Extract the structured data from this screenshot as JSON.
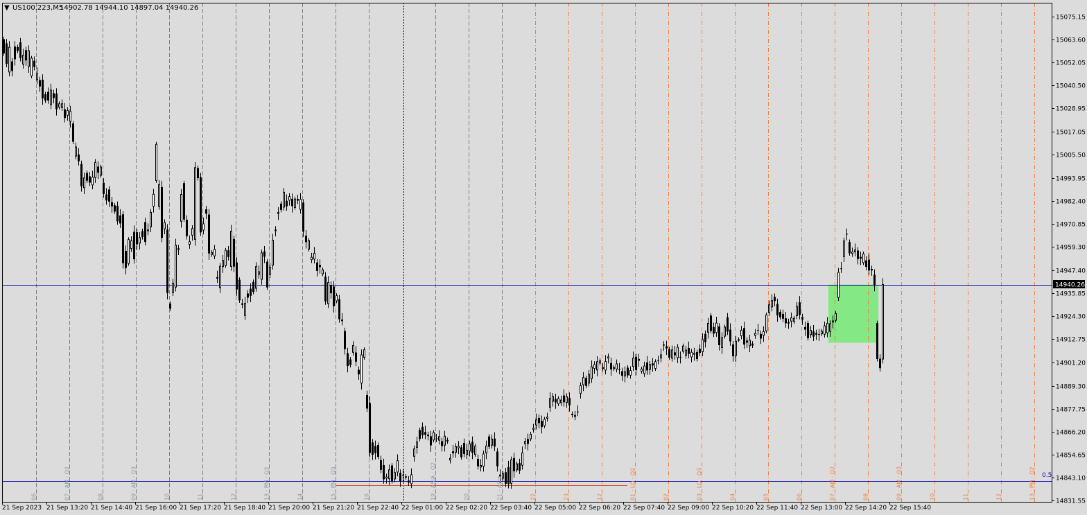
{
  "header": {
    "menu_arrow": "▼",
    "symbol": "US100.223,M5",
    "ohlc": "14902.78 14944.10 14897.04 14940.26"
  },
  "price_badge": "14940.26",
  "level_label": "0.5",
  "colors": {
    "background": "#dcdcdc",
    "candle": "#000000",
    "h_line": "#1515b0",
    "session_line_gray": "#808080",
    "session_line_orange": "#f08040",
    "label_gray": "#8c98a8",
    "label_orange": "#f08040",
    "zone_fill": "#84e884",
    "low_line": "#d85030"
  },
  "chart_data": {
    "type": "candlestick",
    "ylim": [
      14831,
      15082
    ],
    "y_ticks": [
      15075.15,
      15063.6,
      15052.05,
      15040.5,
      15028.95,
      15017.05,
      15005.5,
      14993.95,
      14982.4,
      14970.85,
      14959.3,
      14947.4,
      14935.85,
      14924.3,
      14912.75,
      14901.2,
      14889.3,
      14877.75,
      14866.2,
      14854.65,
      14843.1,
      14831.55
    ],
    "x_labels": [
      "21 Sep 2023",
      "21 Sep 13:20",
      "21 Sep 14:40",
      "21 Sep 16:00",
      "21 Sep 17:20",
      "21 Sep 18:40",
      "21 Sep 20:00",
      "21 Sep 21:20",
      "21 Sep 22:40",
      "22 Sep 01:00",
      "22 Sep 02:20",
      "22 Sep 03:40",
      "22 Sep 05:00",
      "22 Sep 06:20",
      "22 Sep 07:40",
      "22 Sep 09:00",
      "22 Sep 10:20",
      "22 Sep 11:40",
      "22 Sep 13:00",
      "22 Sep 14:20",
      "22 Sep 15:40"
    ],
    "h_lines": [
      14940.26,
      14841.5
    ],
    "zone": {
      "index_from": 298,
      "index_to": 315,
      "price_low": 14911.0,
      "price_high": 14940.26
    },
    "low_segment": {
      "price": 14839.5,
      "index_from": 120,
      "index_to": 225
    },
    "session_lines_gray": [
      {
        "i": 12,
        "label": "06"
      },
      {
        "i": 24,
        "label": "07 · AM · Q2"
      },
      {
        "i": 36,
        "label": "08"
      },
      {
        "i": 48,
        "label": "09 · AM · Q3"
      },
      {
        "i": 60,
        "label": "10"
      },
      {
        "i": 72,
        "label": "11"
      },
      {
        "i": 84,
        "label": "12"
      },
      {
        "i": 96,
        "label": "13 · PM · Q2"
      },
      {
        "i": 108,
        "label": "14"
      },
      {
        "i": 120,
        "label": "15 · PM · Q3"
      },
      {
        "i": 132,
        "label": "16"
      },
      {
        "i": 156,
        "label": "19 · ASIA · Q2"
      },
      {
        "i": 168,
        "label": "20"
      },
      {
        "i": 180,
        "label": "21 · ASIA"
      }
    ],
    "session_lines_orange": [
      {
        "i": 192,
        "label": "22"
      },
      {
        "i": 204,
        "label": "23"
      },
      {
        "i": 216,
        "label": "12"
      },
      {
        "i": 228,
        "label": "01 · LO · Q2"
      },
      {
        "i": 240,
        "label": "02"
      },
      {
        "i": 252,
        "label": "03 · LO · Q3"
      },
      {
        "i": 264,
        "label": "04"
      },
      {
        "i": 276,
        "label": "05"
      },
      {
        "i": 288,
        "label": "06"
      },
      {
        "i": 300,
        "label": "07 · AM · Q2"
      },
      {
        "i": 312,
        "label": "08"
      },
      {
        "i": 324,
        "label": "09 · AM · Q3"
      },
      {
        "i": 336,
        "label": "10"
      },
      {
        "i": 348,
        "label": "11"
      },
      {
        "i": 360,
        "label": "12"
      },
      {
        "i": 372,
        "label": "13 · PM · Q2"
      }
    ],
    "dotted_line_index": 144,
    "candles": [
      [
        15063.7,
        15056.5
      ],
      [
        15061.6,
        15051.3
      ],
      [
        15047.2,
        15059.6
      ],
      [
        15052.5,
        15047.7
      ],
      [
        15060.0,
        15053.6
      ],
      [
        15059.7,
        15057.8
      ],
      [
        15062.1,
        15054.2
      ],
      [
        15051.1,
        15055.6
      ],
      [
        15058.2,
        15053.0
      ],
      [
        15050.0,
        15057.9
      ],
      [
        15045.2,
        15054.1
      ],
      [
        15052.8,
        15049.7
      ],
      [
        15043.4,
        15046.3
      ],
      [
        15043.1,
        15039.9
      ],
      [
        15043.3,
        15033.9
      ],
      [
        15036.0,
        15032.8
      ],
      [
        15037.2,
        15032.9
      ],
      [
        15030.8,
        15038.1
      ],
      [
        15036.5,
        15034.1
      ],
      [
        15036.3,
        15028.5
      ],
      [
        15029.5,
        15031.2
      ],
      [
        15029.3,
        15031.2
      ],
      [
        15028.4,
        15024.0
      ],
      [
        15025.4,
        15027.8
      ],
      [
        15022.4,
        15027.4
      ],
      [
        15021.3,
        15012.1
      ],
      [
        15004.9,
        15009.5
      ],
      [
        15005.7,
        15002.3
      ],
      [
        15000.9,
        14989.7
      ],
      [
        14989.0,
        14993.9
      ],
      [
        14996.4,
        14992.5
      ],
      [
        14994.7,
        14991.5
      ],
      [
        14990.4,
        14994.3
      ],
      [
        14994.1,
        15001.7
      ],
      [
        14999.6,
        14996.6
      ],
      [
        14995.2,
        14999.4
      ],
      [
        14991.5,
        14985.8
      ],
      [
        14985.6,
        14982.6
      ],
      [
        14988.1,
        14982.0
      ],
      [
        14981.7,
        14979.6
      ],
      [
        14980.1,
        14977.0
      ],
      [
        14979.9,
        14972.1
      ],
      [
        14975.0,
        14971.0
      ],
      [
        14975.6,
        14951.0
      ],
      [
        14957.2,
        14948.6
      ],
      [
        14950.9,
        14962.9
      ],
      [
        14958.4,
        14962.3
      ],
      [
        14966.8,
        14953.0
      ],
      [
        14966.6,
        14960.5
      ],
      [
        14961.1,
        14963.9
      ],
      [
        14967.2,
        14964.1
      ],
      [
        14971.7,
        14961.7
      ],
      [
        14967.3,
        14967.8
      ],
      [
        14969.3,
        14976.6
      ],
      [
        14979.7,
        14985.7
      ],
      [
        14992.6,
        15010.8
      ],
      [
        14979.6,
        14990.6
      ],
      [
        14989.3,
        14963.8
      ],
      [
        14968.3,
        14971.4
      ],
      [
        14967.9,
        14936.0
      ],
      [
        14930.7,
        14928.2
      ],
      [
        14936.2,
        14941.0
      ],
      [
        14939.0,
        14960.1
      ],
      [
        14958.5,
        14957.8
      ],
      [
        14972.1,
        14985.6
      ],
      [
        14991.3,
        14973.0
      ],
      [
        14972.9,
        14964.6
      ],
      [
        14960.5,
        14961.8
      ],
      [
        14965.1,
        14968.4
      ],
      [
        14963.0,
        14999.1
      ],
      [
        14998.9,
        14993.8
      ],
      [
        14994.3,
        14966.5
      ],
      [
        14967.7,
        14970.8
      ],
      [
        14978.1,
        14975.9
      ],
      [
        14975.5,
        14955.9
      ],
      [
        14955.4,
        14956.4
      ],
      [
        14954.7,
        14958.0
      ],
      [
        14944.0,
        14943.3
      ],
      [
        14938.7,
        14949.5
      ],
      [
        14949.3,
        14952.4
      ],
      [
        14949.9,
        14957.5
      ],
      [
        14957.5,
        14954.1
      ],
      [
        14949.4,
        14967.1
      ],
      [
        14963.2,
        14949.3
      ],
      [
        14951.4,
        14937.8
      ],
      [
        14942.7,
        14932.3
      ],
      [
        14930.8,
        14930.1
      ],
      [
        14924.7,
        14930.8
      ],
      [
        14935.8,
        14933.7
      ],
      [
        14938.2,
        14934.6
      ],
      [
        14941.6,
        14936.6
      ],
      [
        14938.4,
        14949.3
      ],
      [
        14945.4,
        14946.7
      ],
      [
        14942.9,
        14956.2
      ],
      [
        14957.0,
        14954.3
      ],
      [
        14951.8,
        14938.8
      ],
      [
        14945.3,
        14949.0
      ],
      [
        14950.0,
        14962.6
      ],
      [
        14967.9,
        14967.2
      ],
      [
        14976.0,
        14976.5
      ],
      [
        14981.0,
        14977.8
      ],
      [
        14979.2,
        14986.7
      ],
      [
        14982.4,
        14979.6
      ],
      [
        14982.7,
        14984.5
      ],
      [
        14983.4,
        14979.7
      ],
      [
        14979.0,
        14983.3
      ],
      [
        14983.3,
        14982.5
      ],
      [
        14978.1,
        14983.1
      ],
      [
        14981.5,
        14966.9
      ],
      [
        14964.9,
        14961.6
      ],
      [
        14958.1,
        14962.4
      ],
      [
        14952.8,
        14954.0
      ],
      [
        14953.1,
        14956.0
      ],
      [
        14951.4,
        14947.1
      ],
      [
        14950.2,
        14949.0
      ],
      [
        14945.7,
        14947.7
      ],
      [
        14944.3,
        14931.8
      ],
      [
        14930.7,
        14941.3
      ],
      [
        14940.1,
        14935.9
      ],
      [
        14939.3,
        14929.4
      ],
      [
        14932.1,
        14934.7
      ],
      [
        14932.9,
        14922.8
      ],
      [
        14922.7,
        14921.9
      ],
      [
        14916.9,
        14907.8
      ],
      [
        14905.8,
        14899.3
      ],
      [
        14902.6,
        14899.8
      ],
      [
        14906.2,
        14909.6
      ],
      [
        14906.1,
        14901.5
      ],
      [
        14897.4,
        14895.1
      ],
      [
        14890.7,
        14904.9
      ],
      [
        14903.7,
        14907.5
      ],
      [
        14884.7,
        14877.9
      ],
      [
        14880.7,
        14855.6
      ],
      [
        14860.9,
        14854.7
      ],
      [
        14859.1,
        14855.5
      ],
      [
        14859.6,
        14853.6
      ],
      [
        14852.0,
        14847.1
      ],
      [
        14849.5,
        14842.3
      ],
      [
        14842.9,
        14843.5
      ],
      [
        14842.6,
        14847.1
      ],
      [
        14849.3,
        14841.4
      ],
      [
        14842.5,
        14845.7
      ],
      [
        14846.0,
        14851.7
      ],
      [
        14845.6,
        14841.3
      ],
      [
        14844.5,
        14844.1
      ],
      [
        14843.8,
        14843.2
      ],
      [
        14841.7,
        14840.7
      ],
      [
        14840.1,
        14844.6
      ],
      [
        14853.9,
        14857.6
      ],
      [
        14858.4,
        14861.1
      ],
      [
        14867.1,
        14862.6
      ],
      [
        14868.7,
        14864.5
      ],
      [
        14866.1,
        14864.7
      ],
      [
        14864.6,
        14864.6
      ],
      [
        14864.0,
        14859.4
      ],
      [
        14862.1,
        14865.9
      ],
      [
        14862.9,
        14862.7
      ],
      [
        14862.0,
        14863.8
      ],
      [
        14861.5,
        14859.0
      ],
      [
        14859.5,
        14864.0
      ],
      [
        14862.1,
        14861.4
      ],
      [
        14852.0,
        14852.9
      ],
      [
        14856.4,
        14855.4
      ],
      [
        14855.9,
        14858.8
      ],
      [
        14858.2,
        14858.9
      ],
      [
        14858.4,
        14853.4
      ],
      [
        14860.6,
        14855.1
      ],
      [
        14854.8,
        14857.0
      ],
      [
        14856.5,
        14860.1
      ],
      [
        14861.2,
        14855.7
      ],
      [
        14854.8,
        14859.0
      ],
      [
        14852.6,
        14848.9
      ],
      [
        14848.5,
        14849.3
      ],
      [
        14848.9,
        14855.1
      ],
      [
        14855.7,
        14859.1
      ],
      [
        14863.9,
        14858.7
      ],
      [
        14859.5,
        14862.6
      ],
      [
        14862.8,
        14858.8
      ],
      [
        14856.3,
        14848.9
      ],
      [
        14844.7,
        14843.6
      ],
      [
        14842.9,
        14845.2
      ],
      [
        14845.9,
        14840.1
      ],
      [
        14848.4,
        14840.0
      ],
      [
        14840.3,
        14852.1
      ],
      [
        14853.0,
        14846.4
      ],
      [
        14847.1,
        14850.1
      ],
      [
        14850.5,
        14846.7
      ],
      [
        14849.4,
        14855.6
      ],
      [
        14860.2,
        14861.4
      ],
      [
        14862.6,
        14860.1
      ],
      [
        14862.7,
        14865.0
      ],
      [
        14867.5,
        14868.0
      ],
      [
        14869.6,
        14872.2
      ],
      [
        14873.2,
        14870.6
      ],
      [
        14871.7,
        14868.6
      ],
      [
        14869.3,
        14872.5
      ],
      [
        14873.0,
        14873.6
      ],
      [
        14878.5,
        14883.0
      ],
      [
        14881.6,
        14884.0
      ],
      [
        14882.7,
        14881.0
      ],
      [
        14880.3,
        14882.9
      ],
      [
        14880.9,
        14882.2
      ],
      [
        14884.5,
        14881.1
      ],
      [
        14881.0,
        14883.9
      ],
      [
        14883.3,
        14879.6
      ],
      [
        14875.3,
        14874.6
      ],
      [
        14873.8,
        14874.5
      ],
      [
        14876.4,
        14876.3
      ],
      [
        14885.6,
        14889.4
      ],
      [
        14889.9,
        14893.5
      ],
      [
        14893.3,
        14889.3
      ],
      [
        14890.7,
        14895.1
      ],
      [
        14893.0,
        14898.9
      ],
      [
        14898.1,
        14900.0
      ],
      [
        14897.3,
        14901.5
      ],
      [
        14900.8,
        14901.9
      ],
      [
        14898.0,
        14898.6
      ],
      [
        14897.3,
        14901.6
      ],
      [
        14903.3,
        14903.9
      ],
      [
        14900.8,
        14897.6
      ],
      [
        14898.0,
        14898.5
      ],
      [
        14897.8,
        14900.4
      ],
      [
        14897.7,
        14897.3
      ],
      [
        14896.7,
        14894.4
      ],
      [
        14894.3,
        14896.4
      ],
      [
        14898.5,
        14894.6
      ],
      [
        14894.7,
        14897.0
      ],
      [
        14899.1,
        14903.3
      ],
      [
        14903.9,
        14897.3
      ],
      [
        14902.1,
        14902.7
      ],
      [
        14896.7,
        14897.8
      ],
      [
        14895.5,
        14899.3
      ],
      [
        14901.1,
        14897.1
      ],
      [
        14897.6,
        14900.1
      ],
      [
        14900.6,
        14899.6
      ],
      [
        14898.1,
        14901.5
      ],
      [
        14902.3,
        14901.9
      ],
      [
        14903.4,
        14904.9
      ],
      [
        14910.1,
        14909.6
      ],
      [
        14909.3,
        14908.1
      ],
      [
        14907.7,
        14903.6
      ],
      [
        14903.2,
        14907.4
      ],
      [
        14906.2,
        14904.7
      ],
      [
        14903.5,
        14908.7
      ],
      [
        14903.9,
        14903.8
      ],
      [
        14906.7,
        14909.4
      ],
      [
        14904.7,
        14907.3
      ],
      [
        14908.4,
        14905.4
      ],
      [
        14903.9,
        14906.2
      ],
      [
        14905.2,
        14905.8
      ],
      [
        14906.3,
        14902.8
      ],
      [
        14908.0,
        14905.9
      ],
      [
        14906.5,
        14912.6
      ],
      [
        14915.5,
        14911.3
      ],
      [
        14916.3,
        14920.8
      ],
      [
        14924.7,
        14916.9
      ],
      [
        14918.9,
        14915.6
      ],
      [
        14916.2,
        14920.9
      ],
      [
        14919.2,
        14909.8
      ],
      [
        14908.6,
        14913.6
      ],
      [
        14914.3,
        14918.9
      ],
      [
        14923.8,
        14916.6
      ],
      [
        14917.6,
        14911.7
      ],
      [
        14910.2,
        14904.2
      ],
      [
        14904.6,
        14911.8
      ],
      [
        14912.6,
        14912.6
      ],
      [
        14914.5,
        14917.3
      ],
      [
        14918.4,
        14910.1
      ],
      [
        14912.1,
        14911.1
      ],
      [
        14909.5,
        14912.3
      ],
      [
        14910.6,
        14909.6
      ],
      [
        14914.7,
        14915.7
      ],
      [
        14917.4,
        14917.2
      ],
      [
        14915.4,
        14913.1
      ],
      [
        14914.7,
        14916.6
      ],
      [
        14917.0,
        14925.0
      ],
      [
        14926.2,
        14930.1
      ],
      [
        14929.0,
        14932.2
      ],
      [
        14934.1,
        14932.0
      ],
      [
        14930.5,
        14924.8
      ],
      [
        14926.5,
        14923.8
      ],
      [
        14925.5,
        14923.1
      ],
      [
        14923.3,
        14920.8
      ],
      [
        14921.4,
        14920.7
      ],
      [
        14921.9,
        14923.5
      ],
      [
        14921.7,
        14923.3
      ],
      [
        14924.6,
        14929.3
      ],
      [
        14931.3,
        14925.0
      ],
      [
        14923.9,
        14922.7
      ],
      [
        14918.9,
        14917.6
      ],
      [
        14920.9,
        14913.3
      ],
      [
        14915.1,
        14917.2
      ],
      [
        14916.7,
        14914.1
      ],
      [
        14915.9,
        14915.1
      ],
      [
        14915.3,
        14915.1
      ],
      [
        14915.5,
        14916.8
      ],
      [
        14915.3,
        14919.5
      ],
      [
        14916.0,
        14920.7
      ],
      [
        14916.7,
        14920.6
      ],
      [
        14921.4,
        14922.0
      ],
      [
        14922.3,
        14925.7
      ],
      [
        14933.8,
        14946.4
      ],
      [
        14948.4,
        14948.3
      ],
      [
        14954.3,
        14962.2
      ],
      [
        14965.8,
        14965.7
      ],
      [
        14961.7,
        14956.0
      ],
      [
        14955.9,
        14956.7
      ],
      [
        14956.7,
        14957.7
      ],
      [
        14957.4,
        14953.1
      ],
      [
        14954.2,
        14953.3
      ],
      [
        14951.3,
        14955.7
      ],
      [
        14952.4,
        14949.2
      ],
      [
        14952.8,
        14947.4
      ],
      [
        14948.1,
        14947.4
      ],
      [
        14945.2,
        14940.1
      ],
      [
        14920.9,
        14902.8
      ],
      [
        14903.0,
        14898.2
      ],
      [
        14902.8,
        14940.3
      ]
    ]
  }
}
